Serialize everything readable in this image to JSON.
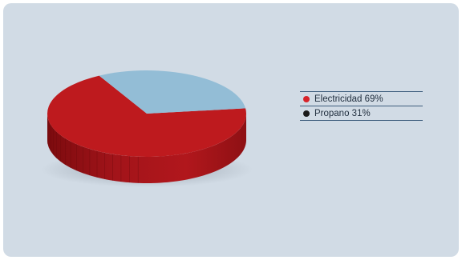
{
  "chart_data": {
    "type": "pie",
    "style": "3d",
    "slices": [
      {
        "label": "Electricidad 69%",
        "value": 69,
        "color": "#be1a1e"
      },
      {
        "label": "Propano 31%",
        "value": 31,
        "color": "#93bdd6"
      }
    ],
    "legend": {
      "position": "right",
      "items": [
        {
          "label": "Electricidad 69%",
          "marker_color": "#d7232a"
        },
        {
          "label": "Propano 31%",
          "marker_color": "#1a1a1a"
        }
      ]
    }
  },
  "colors": {
    "background": "#d1dbe5",
    "legend_rule": "#3e5d7d",
    "pie_side": "#8f0f12"
  }
}
